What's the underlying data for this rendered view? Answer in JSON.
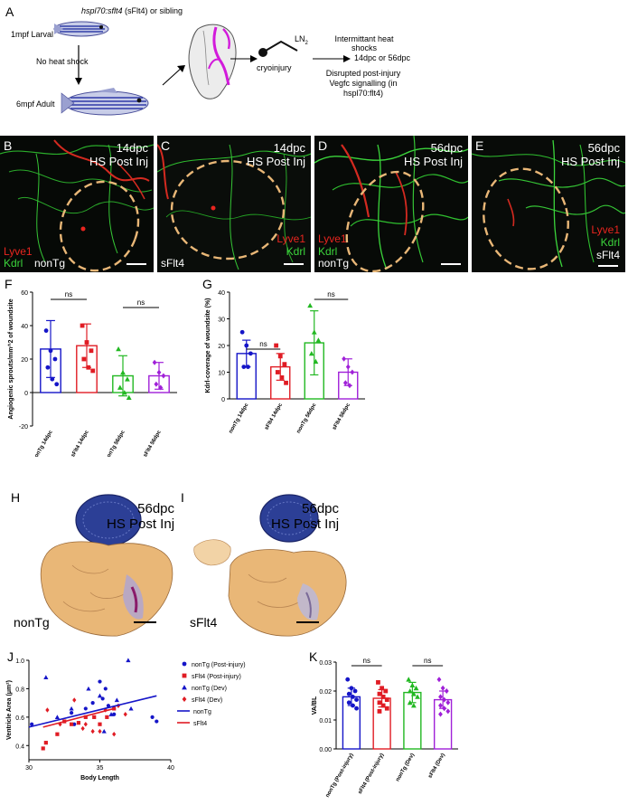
{
  "panel_letters": {
    "A": "A",
    "B": "B",
    "C": "C",
    "D": "D",
    "E": "E",
    "F": "F",
    "G": "G",
    "H": "H",
    "I": "I",
    "J": "J",
    "K": "K"
  },
  "schematic": {
    "genotype_italic": "hspl70:sflt4",
    "genotype_rest": " (sFlt4) or sibling",
    "larval": "1mpf Larval",
    "no_heat": "No heat shock",
    "adult": "6mpf Adult",
    "cryo": "cryoinjury",
    "ln2": "LN",
    "ln2_sub": "2",
    "shocks_1": "Intermittant heat",
    "shocks_2": "shocks",
    "timepoint": "14dpc or 56dpc",
    "disrupted_1": "Disrupted post-injury",
    "disrupted_2": "Vegfc signalling (in",
    "disrupted_3": "hspl70:flt4)"
  },
  "micrographs": {
    "B": {
      "line1": "14dpc",
      "line2": "HS Post Inj",
      "lyve": "Lyve1",
      "kdrl": "Kdrl",
      "geno": "nonTg"
    },
    "C": {
      "line1": "14dpc",
      "line2": "HS Post Inj",
      "lyve": "Lyve1",
      "kdrl": "Kdrl",
      "geno": "sFlt4"
    },
    "D": {
      "line1": "56dpc",
      "line2": "HS Post Inj",
      "lyve": "Lyve1",
      "kdrl": "Kdrl",
      "geno": "nonTg"
    },
    "E": {
      "line1": "56dpc",
      "line2": "HS Post Inj",
      "lyve": "Lyve1",
      "kdrl": "Kdrl",
      "geno": "sFlt4"
    }
  },
  "histology": {
    "H": {
      "line1": "56dpc",
      "line2": "HS Post Inj",
      "geno": "nonTg"
    },
    "I": {
      "line1": "56dpc",
      "line2": "HS Post Inj",
      "geno": "sFlt4"
    }
  },
  "chart_data": [
    {
      "id": "F",
      "type": "bar",
      "ylabel": "Angiogenic sprouts/mm^2 of woundsite",
      "categories": [
        "nonTg 14dpc",
        "sFlt4 14dpc",
        "nonTg 56dpc",
        "sFlt4 56dpc"
      ],
      "values": [
        26,
        28,
        10,
        10
      ],
      "errors": [
        17,
        13,
        12,
        8
      ],
      "colors": [
        "#1515c8",
        "#e01c24",
        "#22b822",
        "#a020d8"
      ],
      "markers": [
        "circle",
        "square",
        "triangle",
        "diamond"
      ],
      "points": [
        [
          37,
          25,
          20,
          15,
          8,
          5
        ],
        [
          40,
          30,
          25,
          20,
          15,
          13
        ],
        [
          26,
          12,
          8,
          3,
          0,
          -3
        ],
        [
          18,
          12,
          10,
          5,
          3
        ]
      ],
      "ylim": [
        -20,
        60
      ],
      "yticks": [
        -20,
        0,
        20,
        40,
        60
      ],
      "sig": [
        {
          "a": 0,
          "b": 1,
          "label": "ns"
        },
        {
          "a": 2,
          "b": 3,
          "label": "ns"
        }
      ]
    },
    {
      "id": "G",
      "type": "bar",
      "ylabel": "Kdrl-coverage of woundsite (%)",
      "categories": [
        "nonTg 14dpc",
        "sFlt4 14dpc",
        "nonTg 56dpc",
        "sFlt4 56dpc"
      ],
      "values": [
        17,
        12,
        21,
        10
      ],
      "errors": [
        5,
        5,
        12,
        5
      ],
      "colors": [
        "#1515c8",
        "#e01c24",
        "#22b822",
        "#a020d8"
      ],
      "markers": [
        "circle",
        "square",
        "triangle",
        "diamond"
      ],
      "points": [
        [
          25,
          20,
          17,
          12,
          12
        ],
        [
          20,
          16,
          13,
          10,
          8,
          6
        ],
        [
          35,
          25,
          22,
          17,
          14
        ],
        [
          15,
          12,
          10,
          6,
          5
        ]
      ],
      "ylim": [
        0,
        40
      ],
      "yticks": [
        0,
        10,
        20,
        30,
        40
      ],
      "sig": [
        {
          "a": 0,
          "b": 1,
          "label": "ns"
        },
        {
          "a": 2,
          "b": 3,
          "label": "ns"
        }
      ]
    },
    {
      "id": "J",
      "type": "scatter",
      "xlabel": "Body Length",
      "ylabel": "Ventricle Area (μm²)",
      "xlim": [
        30,
        40
      ],
      "ylim": [
        0.3,
        1.0
      ],
      "xticks": [
        30,
        35,
        40
      ],
      "yticks": [
        0.4,
        0.6,
        0.8,
        1.0
      ],
      "series": [
        {
          "name": "nonTg (Post-injury)",
          "color": "#1515c8",
          "marker": "circle",
          "points": [
            [
              30.2,
              0.55
            ],
            [
              33,
              0.63
            ],
            [
              34,
              0.66
            ],
            [
              34.5,
              0.7
            ],
            [
              35,
              0.85
            ],
            [
              35.2,
              0.73
            ],
            [
              35.6,
              0.68
            ],
            [
              36,
              0.62
            ],
            [
              39,
              0.57
            ],
            [
              38.7,
              0.6
            ],
            [
              33.2,
              0.55
            ],
            [
              35.4,
              0.8
            ]
          ]
        },
        {
          "name": "sFlt4 (Post-injury)",
          "color": "#e01c24",
          "marker": "square",
          "points": [
            [
              31,
              0.38
            ],
            [
              31.2,
              0.42
            ],
            [
              32,
              0.48
            ],
            [
              32.5,
              0.57
            ],
            [
              33,
              0.55
            ],
            [
              33.5,
              0.56
            ],
            [
              34,
              0.6
            ],
            [
              34.6,
              0.6
            ],
            [
              35,
              0.55
            ],
            [
              35.5,
              0.6
            ],
            [
              36,
              0.66
            ]
          ]
        },
        {
          "name": "nonTg (Dev)",
          "color": "#1515c8",
          "marker": "triangle",
          "points": [
            [
              31.2,
              0.88
            ],
            [
              32,
              0.6
            ],
            [
              33,
              0.66
            ],
            [
              34.2,
              0.8
            ],
            [
              35,
              0.75
            ],
            [
              35.3,
              0.5
            ],
            [
              36.2,
              0.72
            ],
            [
              37,
              1.0
            ],
            [
              37.2,
              0.66
            ],
            [
              35.8,
              0.62
            ]
          ]
        },
        {
          "name": "sFlt4 (Dev)",
          "color": "#e01c24",
          "marker": "diamond",
          "points": [
            [
              31.3,
              0.65
            ],
            [
              32.2,
              0.55
            ],
            [
              33.2,
              0.72
            ],
            [
              33.8,
              0.52
            ],
            [
              34,
              0.55
            ],
            [
              34.5,
              0.5
            ],
            [
              35,
              0.5
            ],
            [
              35.4,
              0.65
            ],
            [
              36,
              0.48
            ],
            [
              36.3,
              0.68
            ],
            [
              36.8,
              0.62
            ]
          ]
        }
      ],
      "lines": [
        {
          "name": "nonTg",
          "color": "#1515c8",
          "x": [
            30,
            39
          ],
          "y": [
            0.53,
            0.75
          ]
        },
        {
          "name": "sFlt4",
          "color": "#e01c24",
          "x": [
            31,
            36
          ],
          "y": [
            0.53,
            0.66
          ]
        }
      ]
    },
    {
      "id": "K",
      "type": "bar",
      "ylabel": "VA/BL",
      "categories": [
        "nonTg (Post-injury)",
        "sFlt4 (Post-injury)",
        "nonTg (Dev)",
        "sFlt4 (Dev)"
      ],
      "values": [
        0.018,
        0.0175,
        0.0195,
        0.017
      ],
      "errors": [
        0.003,
        0.003,
        0.0035,
        0.003
      ],
      "colors": [
        "#1515c8",
        "#e01c24",
        "#22b822",
        "#a020d8"
      ],
      "markers": [
        "circle",
        "square",
        "triangle",
        "diamond"
      ],
      "points": [
        [
          0.024,
          0.021,
          0.02,
          0.019,
          0.018,
          0.017,
          0.016,
          0.015,
          0.014
        ],
        [
          0.023,
          0.021,
          0.02,
          0.019,
          0.018,
          0.017,
          0.016,
          0.015,
          0.014,
          0.013
        ],
        [
          0.024,
          0.022,
          0.021,
          0.02,
          0.019,
          0.018,
          0.016,
          0.015
        ],
        [
          0.024,
          0.021,
          0.02,
          0.018,
          0.017,
          0.016,
          0.015,
          0.014,
          0.013,
          0.012
        ]
      ],
      "ylim": [
        0,
        0.03
      ],
      "yticks": [
        0.0,
        0.01,
        0.02,
        0.03
      ],
      "yticklabels": [
        "0.00",
        "0.01",
        "0.02",
        "0.03"
      ],
      "sig": [
        {
          "a": 0,
          "b": 1,
          "label": "ns"
        },
        {
          "a": 2,
          "b": 3,
          "label": "ns"
        }
      ]
    }
  ],
  "colors": {
    "lyve": "#e8251f",
    "kdrl": "#3bd43b",
    "wound": "#e9b777"
  }
}
